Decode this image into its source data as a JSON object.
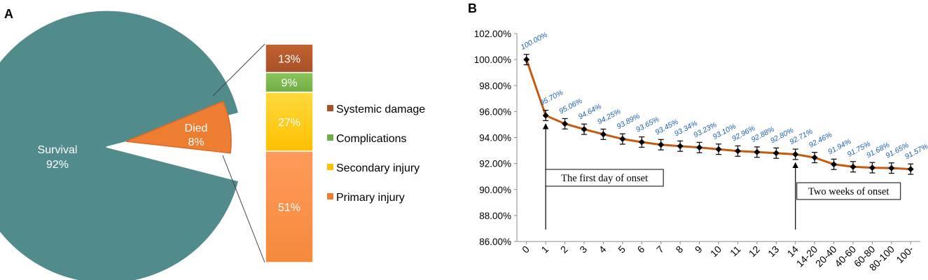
{
  "panel_a": {
    "label": "A",
    "chart_data": {
      "type": "pie",
      "slices": [
        {
          "name": "Survival",
          "value": 92,
          "pct_label": "92%",
          "color": "#528B8B"
        },
        {
          "name": "Died",
          "value": 8,
          "pct_label": "8%",
          "color": "#ED7D31"
        }
      ],
      "breakdown": {
        "type": "stacked-bar",
        "of": "Died",
        "segments": [
          {
            "name": "Primary injury",
            "value": 51,
            "pct_label": "51%",
            "color": "#F58A3C",
            "color_light": "#FF9A5A"
          },
          {
            "name": "Secondary injury",
            "value": 27,
            "pct_label": "27%",
            "color": "#FFC000",
            "color_light": "#FFD93D"
          },
          {
            "name": "Complications",
            "value": 9,
            "pct_label": "9%",
            "color": "#70AD47",
            "color_light": "#8CC45A"
          },
          {
            "name": "Systemic damage",
            "value": 13,
            "pct_label": "13%",
            "color": "#A9512A",
            "color_light": "#C0622F"
          }
        ]
      },
      "legend": [
        {
          "label": "Systemic damage",
          "color": "#A9512A"
        },
        {
          "label": "Complications",
          "color": "#70AD47"
        },
        {
          "label": "Secondary injury",
          "color": "#FFC000"
        },
        {
          "label": "Primary injury",
          "color": "#ED7D31"
        }
      ]
    }
  },
  "panel_b": {
    "label": "B",
    "chart_data": {
      "type": "line",
      "categories": [
        "0",
        "1",
        "2",
        "3",
        "4",
        "5",
        "6",
        "7",
        "8",
        "9",
        "10",
        "11",
        "12",
        "13",
        "14",
        "14-20",
        "20-40",
        "40-60",
        "60-80",
        "80-100",
        "100-"
      ],
      "values": [
        100.0,
        95.7,
        95.06,
        94.64,
        94.25,
        93.89,
        93.65,
        93.45,
        93.34,
        93.23,
        93.1,
        92.96,
        92.88,
        92.8,
        92.71,
        92.46,
        91.94,
        91.75,
        91.68,
        91.65,
        91.57
      ],
      "value_labels": [
        "100.00%",
        "95.70%",
        "95.06%",
        "94.64%",
        "94.25%",
        "93.89%",
        "93.65%",
        "93.45%",
        "93.34%",
        "93.23%",
        "93.10%",
        "92.96%",
        "92.88%",
        "92.80%",
        "92.71%",
        "92.46%",
        "91.94%",
        "91.75%",
        "91.68%",
        "91.65%",
        "91.57%"
      ],
      "error": 0.4,
      "ylim": [
        86,
        102
      ],
      "yticks": [
        86,
        88,
        90,
        92,
        94,
        96,
        98,
        100,
        102
      ],
      "ytick_labels": [
        "86.00%",
        "88.00%",
        "90.00%",
        "92.00%",
        "94.00%",
        "96.00%",
        "98.00%",
        "100.00%",
        "102.00%"
      ],
      "line_color": "#C55A11",
      "label_color": "#1F5FB4",
      "annotations": [
        {
          "text": "The first day of onset",
          "category_index": 1
        },
        {
          "text": "Two weeks of onset",
          "category_index": 14
        }
      ]
    }
  }
}
